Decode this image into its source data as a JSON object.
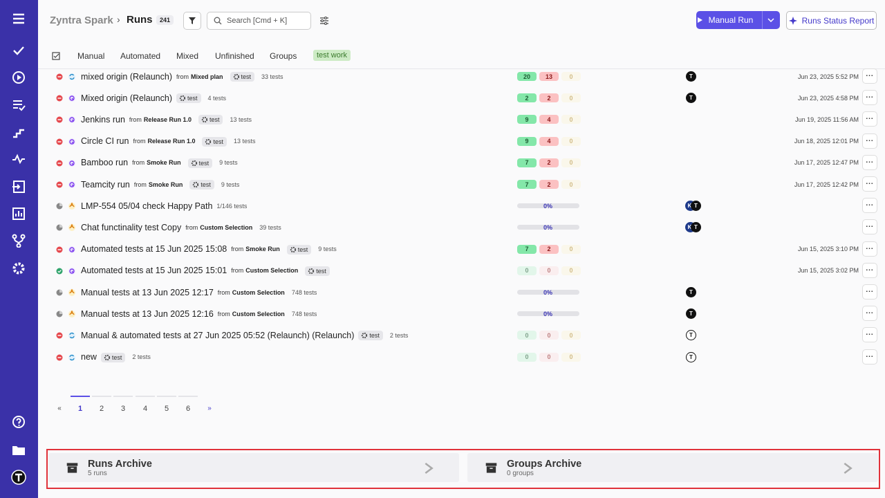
{
  "header": {
    "brand": "Zyntra Spark",
    "section": "Runs",
    "count": "241",
    "search_placeholder": "Search [Cmd + K]",
    "manual_run": "Manual Run",
    "report": "Runs Status Report"
  },
  "tabs": [
    "Manual",
    "Automated",
    "Mixed",
    "Unfinished",
    "Groups",
    "test work"
  ],
  "runs": [
    {
      "status": "failed",
      "kind": "mixed",
      "title": "mixed origin (Relaunch)",
      "from_label": "from",
      "from": "Mixed plan",
      "tag": "test",
      "tests": "33 tests",
      "counts": [
        20,
        13,
        0
      ],
      "avatars": [
        "T"
      ],
      "date": "Jun 23, 2025 5:52 PM"
    },
    {
      "status": "failed",
      "kind": "automated",
      "title": "Mixed origin (Relaunch)",
      "tag": "test",
      "tests": "4 tests",
      "counts": [
        2,
        2,
        0
      ],
      "avatars": [
        "T"
      ],
      "date": "Jun 23, 2025 4:58 PM"
    },
    {
      "status": "failed",
      "kind": "automated",
      "title": "Jenkins run",
      "from_label": "from",
      "from": "Release Run 1.0",
      "tag": "test",
      "tests": "13 tests",
      "counts": [
        9,
        4,
        0
      ],
      "date": "Jun 19, 2025 11:56 AM"
    },
    {
      "status": "failed",
      "kind": "automated",
      "title": "Circle CI run",
      "from_label": "from",
      "from": "Release Run 1.0",
      "tag": "test",
      "tests": "13 tests",
      "counts": [
        9,
        4,
        0
      ],
      "date": "Jun 18, 2025 12:01 PM"
    },
    {
      "status": "failed",
      "kind": "automated",
      "title": "Bamboo run",
      "from_label": "from",
      "from": "Smoke Run",
      "tag": "test",
      "tests": "9 tests",
      "counts": [
        7,
        2,
        0
      ],
      "date": "Jun 17, 2025 12:47 PM"
    },
    {
      "status": "failed",
      "kind": "automated",
      "title": "Teamcity run",
      "from_label": "from",
      "from": "Smoke Run",
      "tag": "test",
      "tests": "9 tests",
      "counts": [
        7,
        2,
        0
      ],
      "date": "Jun 17, 2025 12:42 PM"
    },
    {
      "status": "progress",
      "kind": "manual",
      "title": "LMP-554 05/04 check Happy Path",
      "tests": "1/146 tests",
      "progress": "0%",
      "avatars": [
        "KI",
        "T"
      ]
    },
    {
      "status": "progress",
      "kind": "manual",
      "title": "Chat functinality test Copy",
      "from_label": "from",
      "from": "Custom Selection",
      "tests": "39 tests",
      "progress": "0%",
      "avatars": [
        "KI",
        "T"
      ]
    },
    {
      "status": "failed",
      "kind": "automated",
      "title": "Automated tests at 15 Jun 2025 15:08",
      "from_label": "from",
      "from": "Smoke Run",
      "tag": "test",
      "tests": "9 tests",
      "counts": [
        7,
        2,
        0
      ],
      "date": "Jun 15, 2025 3:10 PM"
    },
    {
      "status": "passed",
      "kind": "automated",
      "title": "Automated tests at 15 Jun 2025 15:01",
      "from_label": "from",
      "from": "Custom Selection",
      "tag": "test",
      "counts": [
        0,
        0,
        0
      ],
      "date": "Jun 15, 2025 3:02 PM"
    },
    {
      "status": "progress",
      "kind": "manual",
      "title": "Manual tests at 13 Jun 2025 12:17",
      "from_label": "from",
      "from": "Custom Selection",
      "tests": "748 tests",
      "progress": "0%",
      "avatars": [
        "T"
      ]
    },
    {
      "status": "progress",
      "kind": "manual",
      "title": "Manual tests at 13 Jun 2025 12:16",
      "from_label": "from",
      "from": "Custom Selection",
      "tests": "748 tests",
      "progress": "0%",
      "avatars": [
        "T"
      ]
    },
    {
      "status": "failed",
      "kind": "mixed",
      "title": "Manual & automated tests at 27 Jun 2025 05:52 (Relaunch) (Relaunch)",
      "tag": "test",
      "tests": "2 tests",
      "counts": [
        0,
        0,
        0
      ],
      "avatars": [
        "T"
      ]
    },
    {
      "status": "failed",
      "kind": "mixed",
      "title": "new",
      "tag": "test",
      "tests": "2 tests",
      "counts": [
        0,
        0,
        0
      ],
      "avatars": [
        "T"
      ]
    }
  ],
  "pagination": [
    "«",
    "1",
    "2",
    "3",
    "4",
    "5",
    "6",
    "»"
  ],
  "archive": [
    {
      "title": "Runs Archive",
      "subtitle": "5 runs"
    },
    {
      "title": "Groups Archive",
      "subtitle": "0 groups"
    }
  ]
}
